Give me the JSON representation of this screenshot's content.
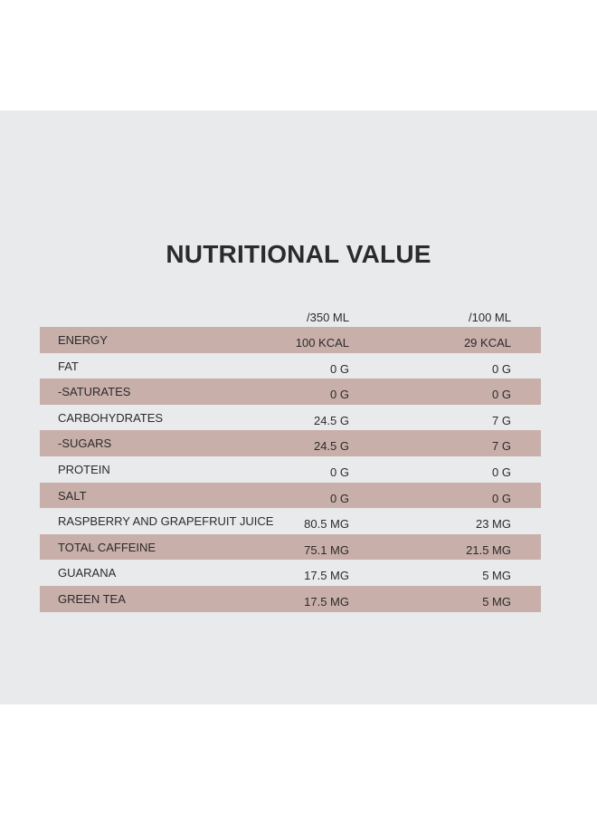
{
  "title": "NUTRITIONAL VALUE",
  "columns": [
    "/350 ML",
    "/100 ML"
  ],
  "rows": [
    {
      "label": "ENERGY",
      "per_350ml": "100 KCAL",
      "per_100ml": "29 KCAL"
    },
    {
      "label": "FAT",
      "per_350ml": "0 G",
      "per_100ml": "0 G"
    },
    {
      "label": "-SATURATES",
      "per_350ml": "0 G",
      "per_100ml": "0 G"
    },
    {
      "label": "CARBOHYDRATES",
      "per_350ml": "24.5 G",
      "per_100ml": "7 G"
    },
    {
      "label": "-SUGARS",
      "per_350ml": "24.5 G",
      "per_100ml": "7 G"
    },
    {
      "label": "PROTEIN",
      "per_350ml": "0 G",
      "per_100ml": "0 G"
    },
    {
      "label": "SALT",
      "per_350ml": "0 G",
      "per_100ml": "0 G"
    },
    {
      "label": "RASPBERRY AND GRAPEFRUIT JUICE",
      "per_350ml": "80.5 MG",
      "per_100ml": "23 MG"
    },
    {
      "label": "TOTAL CAFFEINE",
      "per_350ml": "75.1 MG",
      "per_100ml": "21.5 MG"
    },
    {
      "label": "GUARANA",
      "per_350ml": "17.5 MG",
      "per_100ml": "5 MG"
    },
    {
      "label": "GREEN TEA",
      "per_350ml": "17.5 MG",
      "per_100ml": "5 MG"
    }
  ],
  "colors": {
    "background": "#e9eaec",
    "row_shade": "#c8afaa",
    "text": "#2b2b2b"
  }
}
